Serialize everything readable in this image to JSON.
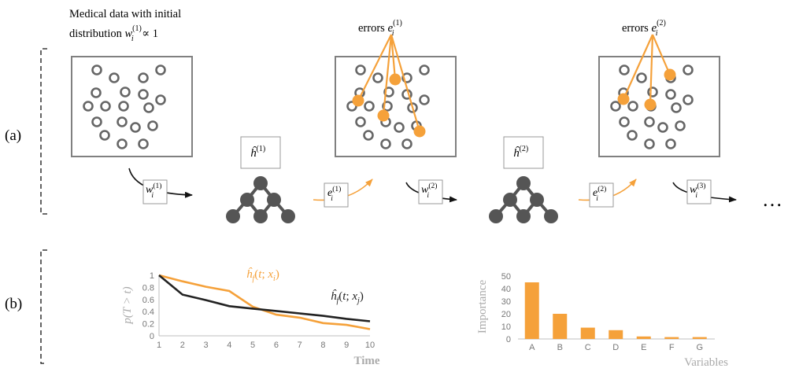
{
  "panel_labels": {
    "a": "(a)",
    "b": "(b)"
  },
  "intro": {
    "line1": "Medical data with initial",
    "line2_prefix": "distribution ",
    "w_base": "w",
    "w_sub": "i",
    "w_sup": "(1)",
    "line2_suffix": " ∝ 1"
  },
  "errors": [
    {
      "word": "errors ",
      "e_base": "e",
      "e_sub": "i",
      "e_sup": "(1)"
    },
    {
      "word": "errors ",
      "e_base": "e",
      "e_sub": "i",
      "e_sup": "(2)"
    }
  ],
  "learners": [
    {
      "h_base": "ĥ",
      "h_sup": "(1)"
    },
    {
      "h_base": "ĥ",
      "h_sup": "(2)"
    }
  ],
  "weight_labels": [
    {
      "base": "w",
      "sub": "i",
      "sup": "(1)"
    },
    {
      "base": "w",
      "sub": "i",
      "sup": "(2)"
    },
    {
      "base": "w",
      "sub": "i",
      "sup": "(3)"
    }
  ],
  "error_labels": [
    {
      "base": "e",
      "sub": "i",
      "sup": "(1)"
    },
    {
      "base": "e",
      "sub": "i",
      "sup": "(2)"
    }
  ],
  "ellipsis": "…",
  "colors": {
    "orange": "#f5a13a",
    "dark": "#222222",
    "node": "#555555",
    "gray": "#888888",
    "box": "#808080"
  },
  "chart_data": [
    {
      "type": "line",
      "ylabel": "p(T > t)",
      "xlabel": "Time",
      "x": [
        1,
        2,
        3,
        4,
        5,
        6,
        7,
        8,
        9,
        10
      ],
      "ylim": [
        0,
        1
      ],
      "xticks": [
        "1",
        "2",
        "3",
        "4",
        "5",
        "6",
        "7",
        "8",
        "9",
        "10"
      ],
      "yticks": [
        "0",
        "0.2",
        "0.4",
        "0.6",
        "0.8",
        "1"
      ],
      "grid": false,
      "series": [
        {
          "name": "ĥf(t; xi)",
          "values": [
            1.0,
            0.9,
            0.81,
            0.74,
            0.48,
            0.35,
            0.3,
            0.21,
            0.18,
            0.11
          ],
          "color": "#f5a13a"
        },
        {
          "name": "ĥf(t; xj)",
          "values": [
            1.0,
            0.68,
            0.59,
            0.49,
            0.45,
            0.41,
            0.37,
            0.33,
            0.28,
            0.24
          ],
          "color": "#222222"
        }
      ]
    },
    {
      "type": "bar",
      "ylabel": "Importance",
      "xlabel": "Variables",
      "categories": [
        "A",
        "B",
        "C",
        "D",
        "E",
        "F",
        "G"
      ],
      "values": [
        45,
        20,
        9,
        7,
        2,
        1.5,
        1.5
      ],
      "ylim": [
        0,
        50
      ],
      "yticks": [
        "0",
        "10",
        "20",
        "30",
        "40",
        "50"
      ],
      "grid": false,
      "color": "#f5a13a"
    }
  ]
}
